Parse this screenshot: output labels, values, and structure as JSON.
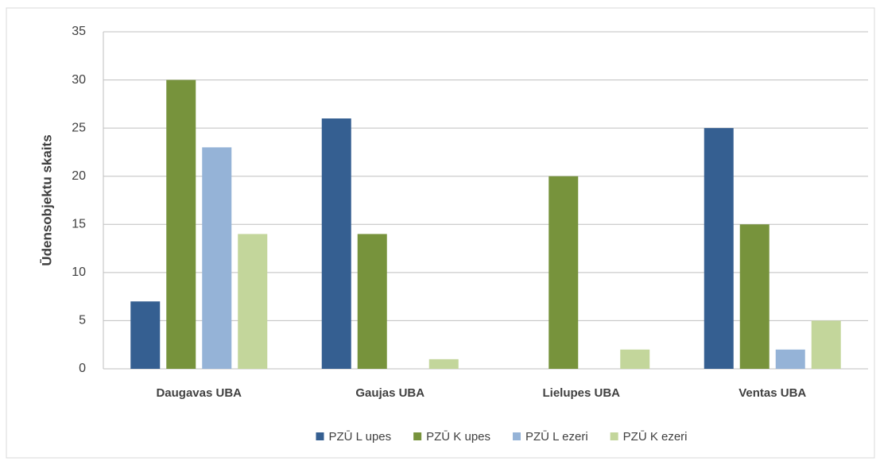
{
  "chart_data": {
    "type": "bar",
    "ylabel": "Ūdensobjektu skaits",
    "categories": [
      "Daugavas UBA",
      "Gaujas UBA",
      "Lielupes UBA",
      "Ventas UBA"
    ],
    "series": [
      {
        "name": "PZŪ L upes",
        "color": "#355f91",
        "values": [
          7,
          26,
          0,
          25
        ]
      },
      {
        "name": "PZŪ K upes",
        "color": "#77933c",
        "values": [
          30,
          14,
          20,
          15
        ]
      },
      {
        "name": "PZŪ L ezeri",
        "color": "#95b3d7",
        "values": [
          23,
          0,
          0,
          2
        ]
      },
      {
        "name": "PZŪ K ezeri",
        "color": "#c3d69b",
        "values": [
          14,
          1,
          2,
          5
        ]
      }
    ],
    "ylim": [
      0,
      35
    ],
    "yticks": [
      0,
      5,
      10,
      15,
      20,
      25,
      30,
      35
    ],
    "grid": true,
    "legend": "bottom"
  }
}
